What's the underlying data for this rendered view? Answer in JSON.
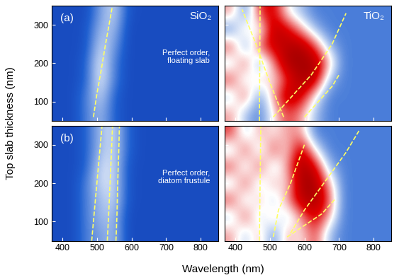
{
  "chart_data": [
    {
      "type": "heatmap",
      "panel_label": "(a)",
      "material": "SiO₂",
      "note": "Perfect order,\nfloating slab",
      "xlim": [
        370,
        850
      ],
      "ylim": [
        50,
        350
      ],
      "xticks": [
        400,
        500,
        600,
        700,
        800
      ],
      "yticks": [
        100,
        200,
        300
      ],
      "tick_labels": "y",
      "clim": [
        0,
        1
      ],
      "cells": [
        [
          0.2,
          0.2,
          0.3,
          0.4,
          0.25,
          0.2,
          0.2,
          0.2,
          0.2,
          0.2,
          0.2,
          0.2
        ],
        [
          0.2,
          0.2,
          0.3,
          0.45,
          0.25,
          0.2,
          0.2,
          0.2,
          0.2,
          0.2,
          0.2,
          0.2
        ],
        [
          0.2,
          0.2,
          0.25,
          0.5,
          0.3,
          0.2,
          0.2,
          0.2,
          0.2,
          0.2,
          0.2,
          0.2
        ],
        [
          0.2,
          0.2,
          0.25,
          0.5,
          0.3,
          0.2,
          0.2,
          0.2,
          0.2,
          0.2,
          0.2,
          0.2
        ],
        [
          0.2,
          0.2,
          0.22,
          0.45,
          0.35,
          0.2,
          0.2,
          0.2,
          0.2,
          0.2,
          0.2,
          0.2
        ],
        [
          0.2,
          0.2,
          0.22,
          0.4,
          0.4,
          0.2,
          0.2,
          0.2,
          0.2,
          0.2,
          0.2,
          0.2
        ],
        [
          0.2,
          0.2,
          0.2,
          0.35,
          0.45,
          0.22,
          0.2,
          0.2,
          0.2,
          0.2,
          0.2,
          0.2
        ]
      ],
      "series": [
        {
          "x": [
            490,
            500,
            512,
            525,
            545
          ],
          "y": [
            60,
            120,
            180,
            250,
            350
          ],
          "color": "#ffff66",
          "line_style": "dashed"
        }
      ]
    },
    {
      "type": "heatmap",
      "material": "TiO₂",
      "xlim": [
        370,
        850
      ],
      "ylim": [
        50,
        350
      ],
      "xticks": [
        400,
        500,
        600,
        700,
        800
      ],
      "yticks": [
        100,
        200,
        300
      ],
      "tick_labels": false,
      "clim": [
        0,
        1
      ],
      "cells": [
        [
          0.6,
          0.4,
          0.3,
          0.5,
          0.7,
          0.6,
          0.4,
          0.3,
          0.3,
          0.3,
          0.3,
          0.3
        ],
        [
          0.4,
          0.7,
          0.3,
          0.6,
          0.85,
          0.8,
          0.5,
          0.3,
          0.3,
          0.3,
          0.3,
          0.3
        ],
        [
          0.7,
          0.4,
          0.6,
          0.5,
          0.7,
          0.9,
          0.85,
          0.4,
          0.3,
          0.3,
          0.3,
          0.3
        ],
        [
          0.4,
          0.7,
          0.3,
          0.6,
          0.9,
          0.9,
          0.9,
          0.6,
          0.3,
          0.3,
          0.3,
          0.3
        ],
        [
          0.7,
          0.3,
          0.7,
          0.8,
          0.85,
          0.9,
          0.7,
          0.4,
          0.3,
          0.3,
          0.3,
          0.3
        ],
        [
          0.3,
          0.6,
          0.4,
          0.85,
          0.8,
          0.6,
          0.4,
          0.3,
          0.3,
          0.3,
          0.3,
          0.3
        ],
        [
          0.6,
          0.3,
          0.7,
          0.8,
          0.5,
          0.4,
          0.3,
          0.3,
          0.3,
          0.3,
          0.3,
          0.3
        ]
      ],
      "series": [
        {
          "x": [
            470,
            471,
            472
          ],
          "y": [
            50,
            200,
            350
          ],
          "color": "#ffff66",
          "line_style": "dashed"
        },
        {
          "x": [
            540,
            500,
            460,
            420
          ],
          "y": [
            60,
            150,
            250,
            340
          ],
          "color": "#ffff66",
          "line_style": "dashed"
        },
        {
          "x": [
            510,
            560,
            620,
            680,
            720
          ],
          "y": [
            60,
            110,
            170,
            250,
            330
          ],
          "color": "#ffff66",
          "line_style": "dashed"
        },
        {
          "x": [
            600,
            640,
            680,
            700
          ],
          "y": [
            60,
            100,
            140,
            170
          ],
          "color": "#ffff66",
          "line_style": "dashed"
        }
      ]
    },
    {
      "type": "heatmap",
      "panel_label": "(b)",
      "note": "Perfect order,\ndiatom frustule",
      "xlim": [
        370,
        850
      ],
      "ylim": [
        50,
        350
      ],
      "xticks": [
        400,
        500,
        600,
        700,
        800
      ],
      "yticks": [
        100,
        200,
        300
      ],
      "clim": [
        0,
        1
      ],
      "cells": [
        [
          0.2,
          0.2,
          0.3,
          0.35,
          0.4,
          0.2,
          0.2,
          0.2,
          0.2,
          0.2,
          0.2,
          0.2
        ],
        [
          0.2,
          0.2,
          0.3,
          0.4,
          0.4,
          0.2,
          0.2,
          0.2,
          0.2,
          0.2,
          0.2,
          0.2
        ],
        [
          0.2,
          0.2,
          0.3,
          0.4,
          0.45,
          0.22,
          0.2,
          0.2,
          0.2,
          0.2,
          0.2,
          0.2
        ],
        [
          0.2,
          0.2,
          0.3,
          0.45,
          0.45,
          0.22,
          0.2,
          0.2,
          0.2,
          0.2,
          0.2,
          0.2
        ],
        [
          0.2,
          0.2,
          0.25,
          0.45,
          0.45,
          0.22,
          0.2,
          0.2,
          0.2,
          0.2,
          0.2,
          0.2
        ],
        [
          0.2,
          0.2,
          0.25,
          0.4,
          0.45,
          0.25,
          0.2,
          0.2,
          0.2,
          0.2,
          0.2,
          0.2
        ],
        [
          0.2,
          0.2,
          0.25,
          0.4,
          0.45,
          0.25,
          0.2,
          0.2,
          0.2,
          0.2,
          0.2,
          0.2
        ]
      ],
      "series": [
        {
          "x": [
            485,
            492,
            500,
            508,
            515
          ],
          "y": [
            50,
            120,
            200,
            280,
            350
          ],
          "color": "#ffff66",
          "line_style": "dashed"
        },
        {
          "x": [
            530,
            534,
            538,
            542,
            545
          ],
          "y": [
            50,
            120,
            200,
            280,
            350
          ],
          "color": "#ffff66",
          "line_style": "dashed"
        },
        {
          "x": [
            555,
            558,
            560,
            563,
            565
          ],
          "y": [
            50,
            120,
            200,
            280,
            350
          ],
          "color": "#ffff66",
          "line_style": "dashed"
        }
      ]
    },
    {
      "type": "heatmap",
      "xlim": [
        370,
        850
      ],
      "ylim": [
        50,
        350
      ],
      "xticks": [
        400,
        500,
        600,
        700,
        800
      ],
      "yticks": [
        100,
        200,
        300
      ],
      "tick_labels": "x",
      "clim": [
        0,
        1
      ],
      "cells": [
        [
          0.6,
          0.4,
          0.6,
          0.3,
          0.6,
          0.5,
          0.7,
          0.4,
          0.3,
          0.3,
          0.3,
          0.3
        ],
        [
          0.4,
          0.7,
          0.4,
          0.6,
          0.4,
          0.6,
          0.8,
          0.6,
          0.3,
          0.3,
          0.3,
          0.3
        ],
        [
          0.7,
          0.4,
          0.6,
          0.4,
          0.6,
          0.85,
          0.9,
          0.7,
          0.3,
          0.3,
          0.3,
          0.3
        ],
        [
          0.4,
          0.7,
          0.4,
          0.6,
          0.5,
          0.9,
          0.9,
          0.6,
          0.3,
          0.3,
          0.3,
          0.3
        ],
        [
          0.7,
          0.4,
          0.7,
          0.4,
          0.6,
          0.9,
          0.8,
          0.4,
          0.3,
          0.3,
          0.3,
          0.3
        ],
        [
          0.4,
          0.7,
          0.4,
          0.7,
          0.5,
          0.85,
          0.5,
          0.3,
          0.3,
          0.3,
          0.3,
          0.3
        ],
        [
          0.7,
          0.4,
          0.6,
          0.5,
          0.6,
          0.6,
          0.3,
          0.3,
          0.3,
          0.3,
          0.3,
          0.3
        ]
      ],
      "series": [
        {
          "x": [
            470,
            472,
            474
          ],
          "y": [
            50,
            200,
            350
          ],
          "color": "#ffff66",
          "line_style": "dashed"
        },
        {
          "x": [
            510,
            525,
            560,
            600
          ],
          "y": [
            60,
            130,
            200,
            300
          ],
          "color": "#ffff66",
          "line_style": "dashed"
        },
        {
          "x": [
            560,
            600,
            640,
            680,
            720,
            760
          ],
          "y": [
            70,
            130,
            180,
            230,
            280,
            340
          ],
          "color": "#ffff66",
          "line_style": "dashed"
        },
        {
          "x": [
            550,
            600,
            650,
            690
          ],
          "y": [
            60,
            90,
            120,
            160
          ],
          "color": "#ffff66",
          "line_style": "dashed"
        }
      ]
    }
  ],
  "xlabel": "Wavelength (nm)",
  "ylabel": "Top slab thickness (nm)"
}
